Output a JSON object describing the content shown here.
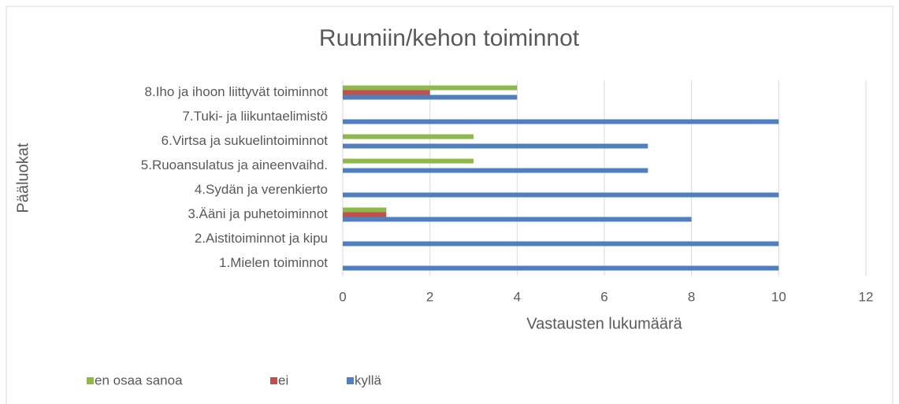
{
  "chart_data": {
    "type": "bar",
    "orientation": "horizontal",
    "title": "Ruumiin/kehon toiminnot",
    "x_label": "Vastausten lukumäärä",
    "y_label": "Pääluokat",
    "categories": [
      "1.Mielen toiminnot",
      "2.Aistitoiminnot ja kipu",
      "3.Ääni ja puhetoiminnot",
      "4.Sydän ja verenkierto",
      "5.Ruoansulatus ja aineenvaihd.",
      "6.Virtsa ja sukuelintoiminnot",
      "7.Tuki- ja liikuntaelimistö",
      "8.Iho ja ihoon liittyvät toiminnot"
    ],
    "series": [
      {
        "name": "en osaa sanoa",
        "color": "#8fb84a",
        "values": [
          0,
          0,
          1,
          0,
          3,
          3,
          0,
          4
        ]
      },
      {
        "name": "ei",
        "color": "#c0504d",
        "values": [
          0,
          0,
          1,
          0,
          0,
          0,
          0,
          2
        ]
      },
      {
        "name": "kyllä",
        "color": "#4f7fbf",
        "values": [
          10,
          10,
          8,
          10,
          7,
          7,
          10,
          4
        ]
      }
    ],
    "xlim": [
      0,
      12
    ],
    "xticks": [
      0,
      2,
      4,
      6,
      8,
      10,
      12
    ],
    "grid": true,
    "legend": "bottom"
  }
}
